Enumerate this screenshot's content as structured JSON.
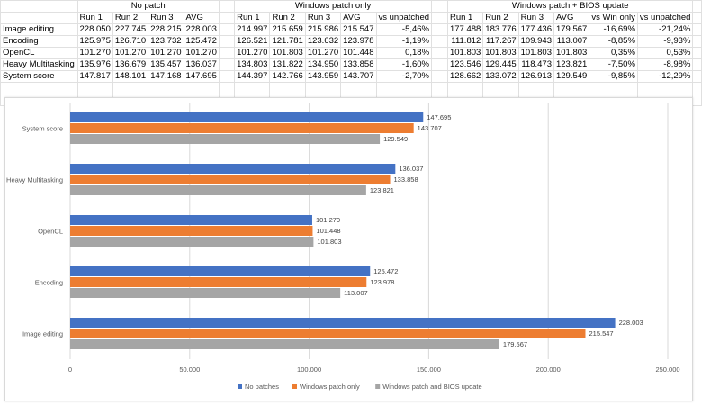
{
  "table": {
    "groups": [
      "No patch",
      "Windows patch only",
      "Windows patch + BIOS update"
    ],
    "headers1": [
      "Run 1",
      "Run 2",
      "Run 3",
      "AVG"
    ],
    "headers2": [
      "Run 1",
      "Run 2",
      "Run 3",
      "AVG",
      "vs unpatched"
    ],
    "headers3": [
      "Run 1",
      "Run 2",
      "Run 3",
      "AVG",
      "vs Win only",
      "vs unpatched"
    ],
    "rows": [
      {
        "label": "Image editing",
        "np": [
          "228.050",
          "227.745",
          "228.215",
          "228.003"
        ],
        "wp": [
          "214.997",
          "215.659",
          "215.986",
          "215.547",
          "-5,46%"
        ],
        "wb": [
          "177.488",
          "183.776",
          "177.436",
          "179.567",
          "-16,69%",
          "-21,24%"
        ]
      },
      {
        "label": "Encoding",
        "np": [
          "125.975",
          "126.710",
          "123.732",
          "125.472"
        ],
        "wp": [
          "126.521",
          "121.781",
          "123.632",
          "123.978",
          "-1,19%"
        ],
        "wb": [
          "111.812",
          "117.267",
          "109.943",
          "113.007",
          "-8,85%",
          "-9,93%"
        ]
      },
      {
        "label": "OpenCL",
        "np": [
          "101.270",
          "101.270",
          "101.270",
          "101.270"
        ],
        "wp": [
          "101.270",
          "101.803",
          "101.270",
          "101.448",
          "0,18%"
        ],
        "wb": [
          "101.803",
          "101.803",
          "101.803",
          "101.803",
          "0,35%",
          "0,53%"
        ]
      },
      {
        "label": "Heavy Multitasking",
        "np": [
          "135.976",
          "136.679",
          "135.457",
          "136.037"
        ],
        "wp": [
          "134.803",
          "131.822",
          "134.950",
          "133.858",
          "-1,60%"
        ],
        "wb": [
          "123.546",
          "129.445",
          "118.473",
          "123.821",
          "-7,50%",
          "-8,98%"
        ]
      },
      {
        "label": "System score",
        "np": [
          "147.817",
          "148.101",
          "147.168",
          "147.695"
        ],
        "wp": [
          "144.397",
          "142.766",
          "143.959",
          "143.707",
          "-2,70%"
        ],
        "wb": [
          "128.662",
          "133.072",
          "126.913",
          "129.549",
          "-9,85%",
          "-12,29%"
        ]
      }
    ]
  },
  "chart_data": {
    "type": "bar",
    "orientation": "horizontal",
    "categories": [
      "Image editing",
      "Encoding",
      "OpenCL",
      "Heavy Multitasking",
      "System score"
    ],
    "series": [
      {
        "name": "No patches",
        "color": "#4472c4",
        "values": [
          228003,
          125472,
          101270,
          136037,
          147695
        ],
        "labels": [
          "228.003",
          "125.472",
          "101.270",
          "136.037",
          "147.695"
        ]
      },
      {
        "name": "Windows patch only",
        "color": "#ed7d31",
        "values": [
          215547,
          123978,
          101448,
          133858,
          143707
        ],
        "labels": [
          "215.547",
          "123.978",
          "101.448",
          "133.858",
          "143.707"
        ]
      },
      {
        "name": "Windows patch and BIOS update",
        "color": "#a5a5a5",
        "values": [
          179567,
          113007,
          101803,
          123821,
          129549
        ],
        "labels": [
          "179.567",
          "113.007",
          "101.803",
          "123.821",
          "129.549"
        ]
      }
    ],
    "xlim": [
      0,
      250000
    ],
    "xticks": [
      0,
      50000,
      100000,
      150000,
      200000,
      250000
    ],
    "xtick_labels": [
      "0",
      "50.000",
      "100.000",
      "150.000",
      "200.000",
      "250.000"
    ],
    "grid": true,
    "legend": "bottom"
  }
}
